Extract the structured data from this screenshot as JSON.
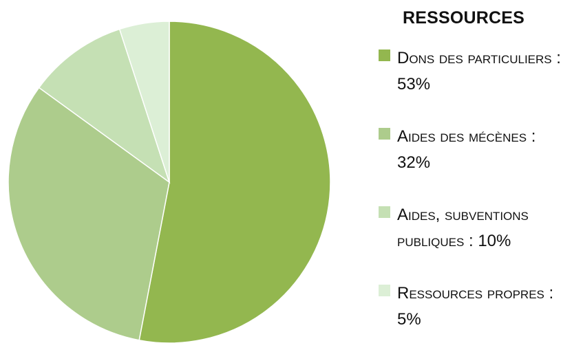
{
  "legend": {
    "title": "RESSOURCES"
  },
  "chart_data": {
    "type": "pie",
    "title": "RESSOURCES",
    "legend_position": "right",
    "start_angle_deg": 0,
    "direction": "clockwise",
    "slices": [
      {
        "label": "Dons des particuliers :",
        "value_text": "53%",
        "value": 53,
        "color": "#93b74f"
      },
      {
        "label": "Aides des mécènes :",
        "value_text": "32%",
        "value": 32,
        "color": "#adcc8c"
      },
      {
        "label": "Aides, subventions publiques :",
        "value_text": "10%",
        "value": 10,
        "color": "#c5e0b4"
      },
      {
        "label": "Ressources propres :",
        "value_text": "5%",
        "value": 5,
        "color": "#dcefd6"
      }
    ]
  }
}
